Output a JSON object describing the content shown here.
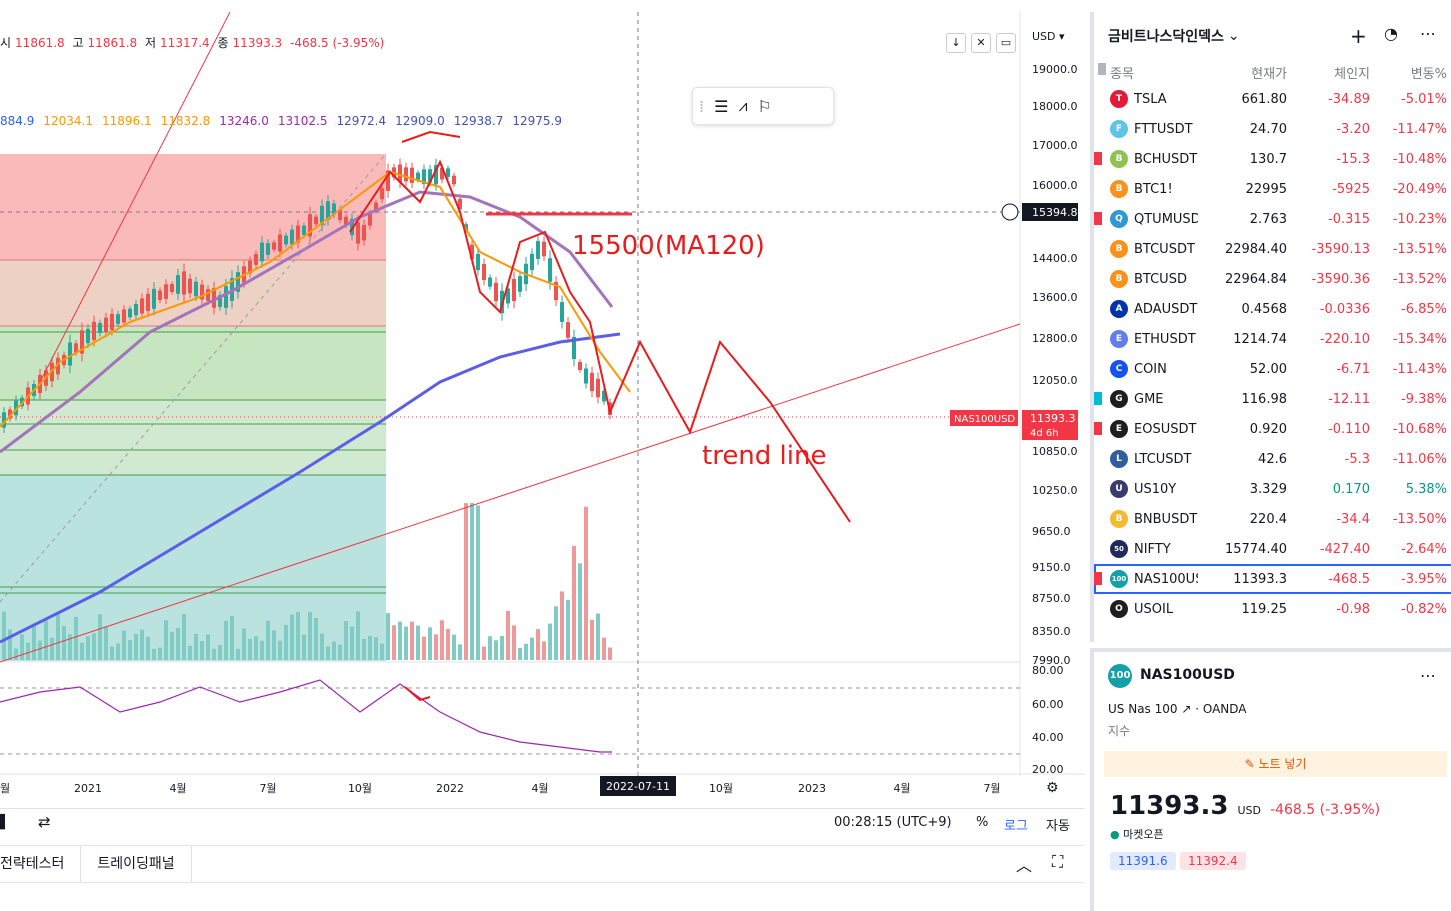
{
  "ohlc": {
    "open_label": "시",
    "open": "11861.8",
    "high_label": "고",
    "high": "11861.8",
    "low_label": "저",
    "low": "11317.4",
    "close_label": "종",
    "close": "11393.3",
    "change": "-468.5 (-3.95%)"
  },
  "ma_values": [
    "884.9",
    "12034.1",
    "11896.1",
    "11832.8",
    "13246.0",
    "13102.5",
    "12972.4",
    "12909.0",
    "12938.7",
    "12975.9"
  ],
  "ma_colors": [
    "#2962ff",
    "#ff9800",
    "#ff9800",
    "#ff9800",
    "#9c27b0",
    "#9c27b0",
    "#3f51b5",
    "#3f51b5",
    "#3f51b5",
    "#3f51b5"
  ],
  "currency": "USD",
  "price_axis": [
    "19000.0",
    "18000.0",
    "17000.0",
    "16000.0",
    "15394.8",
    "14400.0",
    "13600.0",
    "12800.0",
    "12050.0",
    "11393.3",
    "10850.0",
    "10250.0",
    "9650.0",
    "9150.0",
    "8750.0",
    "8350.0",
    "7990.0"
  ],
  "rsi_axis": [
    "80.00",
    "60.00",
    "40.00",
    "20.00"
  ],
  "crosshair_price": "15394.8",
  "symbol_tag": "NAS100USD",
  "last_price_tag": "11393.3",
  "countdown": "4d 6h",
  "time_axis": [
    "월",
    "2021",
    "4월",
    "7월",
    "10월",
    "2022",
    "4월",
    "10월",
    "2023",
    "4월",
    "7월"
  ],
  "crosshair_date": "2022-07-11",
  "annotations": {
    "ma120_note": "15500(MA120)",
    "trend_note": "trend line"
  },
  "bottom_bar": {
    "clock": "00:28:15 (UTC+9)",
    "percent": "%",
    "log": "로그",
    "auto": "자동"
  },
  "tabs": [
    "전략테스터",
    "트레이딩패널"
  ],
  "watchlist": {
    "title": "금비트나스닥인덱스",
    "columns": {
      "symbol": "종목",
      "last": "현재가",
      "change": "체인지",
      "pct": "변동%"
    },
    "rows": [
      {
        "sym": "TSLA",
        "last": "661.80",
        "chg": "-34.89",
        "pct": "-5.01%",
        "color": "#e31937",
        "ico": "T",
        "flag": ""
      },
      {
        "sym": "FTTUSDT",
        "last": "24.70",
        "chg": "-3.20",
        "pct": "-11.47%",
        "color": "#5fc3e4",
        "ico": "F",
        "flag": ""
      },
      {
        "sym": "BCHUSDT",
        "last": "130.7",
        "chg": "-15.3",
        "pct": "-10.48%",
        "color": "#8dc351",
        "ico": "B",
        "flag": "#f23645"
      },
      {
        "sym": "BTC1!",
        "last": "22995",
        "chg": "-5925",
        "pct": "-20.49%",
        "color": "#f7931a",
        "ico": "B",
        "flag": ""
      },
      {
        "sym": "QTUMUSDT",
        "last": "2.763",
        "chg": "-0.315",
        "pct": "-10.23%",
        "color": "#2e9ad0",
        "ico": "Q",
        "flag": "#f23645"
      },
      {
        "sym": "BTCUSDT",
        "last": "22984.40",
        "chg": "-3590.13",
        "pct": "-13.51%",
        "color": "#f7931a",
        "ico": "B",
        "flag": ""
      },
      {
        "sym": "BTCUSD",
        "last": "22964.84",
        "chg": "-3590.36",
        "pct": "-13.52%",
        "color": "#f7931a",
        "ico": "B",
        "flag": ""
      },
      {
        "sym": "ADAUSDT",
        "last": "0.4568",
        "chg": "-0.0336",
        "pct": "-6.85%",
        "color": "#0033ad",
        "ico": "A",
        "flag": ""
      },
      {
        "sym": "ETHUSDT",
        "last": "1214.74",
        "chg": "-220.10",
        "pct": "-15.34%",
        "color": "#627eea",
        "ico": "E",
        "flag": ""
      },
      {
        "sym": "COIN",
        "last": "52.00",
        "chg": "-6.71",
        "pct": "-11.43%",
        "color": "#1652f0",
        "ico": "C",
        "flag": ""
      },
      {
        "sym": "GME",
        "last": "116.98",
        "chg": "-12.11",
        "pct": "-9.38%",
        "color": "#1e1e1e",
        "ico": "G",
        "flag": "#00bcd4"
      },
      {
        "sym": "EOSUSDT",
        "last": "0.920",
        "chg": "-0.110",
        "pct": "-10.68%",
        "color": "#1e1e1e",
        "ico": "E",
        "flag": "#f23645"
      },
      {
        "sym": "LTCUSDT",
        "last": "42.6",
        "chg": "-5.3",
        "pct": "-11.06%",
        "color": "#345d9d",
        "ico": "L",
        "flag": ""
      },
      {
        "sym": "US10Y",
        "last": "3.329",
        "chg": "0.170",
        "pct": "5.38%",
        "color": "#3c3b6e",
        "ico": "U",
        "flag": ""
      },
      {
        "sym": "BNBUSDT",
        "last": "220.4",
        "chg": "-34.4",
        "pct": "-13.50%",
        "color": "#f3ba2f",
        "ico": "B",
        "flag": ""
      },
      {
        "sym": "NIFTY",
        "last": "15774.40",
        "chg": "-427.40",
        "pct": "-2.64%",
        "color": "#1e2a5a",
        "ico": "50",
        "flag": ""
      },
      {
        "sym": "NAS100USD",
        "last": "11393.3",
        "chg": "-468.5",
        "pct": "-3.95%",
        "color": "#14a0a8",
        "ico": "100",
        "flag": "#f23645"
      },
      {
        "sym": "USOIL",
        "last": "119.25",
        "chg": "-0.98",
        "pct": "-0.82%",
        "color": "#1e1e1e",
        "ico": "O",
        "flag": ""
      }
    ]
  },
  "detail": {
    "symbol": "NAS100USD",
    "icon": "100",
    "name": "US Nas 100",
    "broker": "OANDA",
    "type": "지수",
    "note_btn": "노트 넣기",
    "price_main": "11393.3",
    "price_currency": "USD",
    "price_change": "-468.5 (-3.95%)",
    "market": "마켓오픈",
    "bid": "11391.6",
    "ask": "11392.4"
  }
}
